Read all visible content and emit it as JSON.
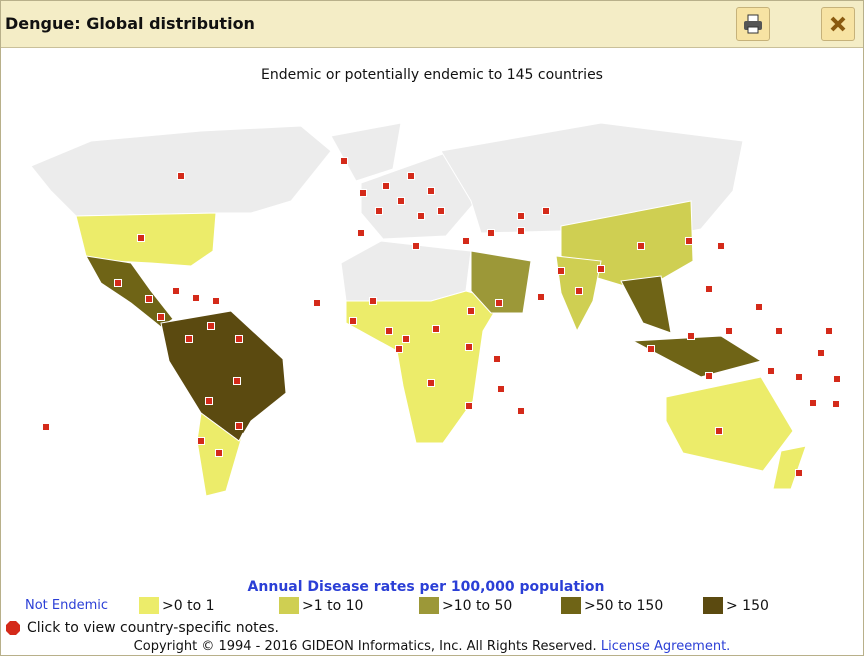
{
  "window": {
    "title": "Dengue: Global distribution"
  },
  "map": {
    "subtitle": "Endemic or potentially endemic to 145 countries"
  },
  "legend": {
    "title": "Annual Disease rates per 100,000 population",
    "not_endemic": "Not Endemic",
    "items": [
      {
        "label": ">0 to 1",
        "color": "#ecec6a"
      },
      {
        "label": ">1 to 10",
        "color": "#cfcf52"
      },
      {
        "label": ">10 to 50",
        "color": "#9c9838"
      },
      {
        "label": ">50 to 150",
        "color": "#6f6416"
      },
      {
        "label": "> 150",
        "color": "#5b4a10"
      }
    ]
  },
  "hint": "Click to view country-specific notes.",
  "footer": {
    "copyright": "Copyright © 1994 - 2016 GIDEON Informatics, Inc. All Rights Reserved.",
    "link": "License Agreement."
  }
}
